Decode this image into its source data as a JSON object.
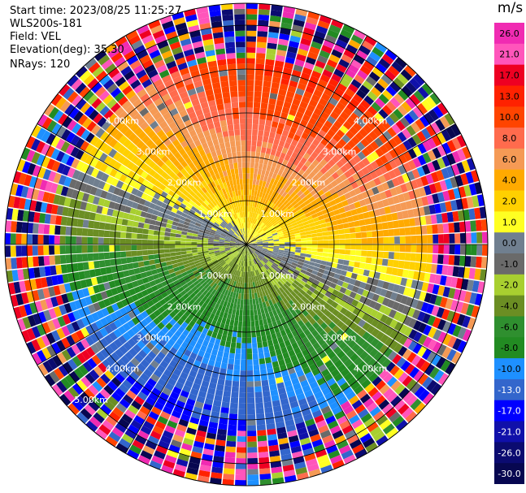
{
  "info": {
    "start_time": "Start time: 2023/08/25 11:25:27",
    "site": "WLS200s-181",
    "field": "Field: VEL",
    "elevation": "Elevation(deg): 35.30",
    "nrays": "NRays: 120"
  },
  "chart_data": {
    "type": "heatmap",
    "projection": "polar PPI",
    "field": "VEL",
    "nrays": 120,
    "elevation_deg": 35.3,
    "range_rings_km": [
      1,
      2,
      3,
      4,
      5
    ],
    "range_ring_labels": [
      "1.00km",
      "2.00km",
      "3.00km",
      "4.00km",
      "5.00km"
    ],
    "max_range_km": 5.5,
    "spoke_angles_deg": [
      0,
      30,
      60,
      90,
      120,
      150,
      180,
      210,
      240,
      270,
      300,
      330
    ],
    "wind_direction_from_deg": 20,
    "approx_speed_profile": [
      {
        "range_km": 0.5,
        "speed_ms": 2.0
      },
      {
        "range_km": 1.5,
        "speed_ms": 6.0
      },
      {
        "range_km": 2.5,
        "speed_ms": 9.0
      },
      {
        "range_km": 3.5,
        "speed_ms": 12.0
      },
      {
        "range_km": 4.2,
        "speed_ms": 14.0
      }
    ],
    "noise_start_km": 4.2,
    "colorbar": {
      "unit": "m/s",
      "ticks": [
        "26.0",
        "21.0",
        "17.0",
        "13.0",
        "10.0",
        "8.0",
        "6.0",
        "4.0",
        "2.0",
        "1.0",
        "0.0",
        "-1.0",
        "-2.0",
        "-4.0",
        "-6.0",
        "-8.0",
        "-10.0",
        "-13.0",
        "-17.0",
        "-21.0",
        "-26.0",
        "-30.0"
      ],
      "bounds": [
        30,
        26,
        21,
        17,
        13,
        10,
        8,
        6,
        4,
        2,
        1,
        0,
        -1,
        -2,
        -4,
        -6,
        -8,
        -10,
        -13,
        -17,
        -21,
        -26,
        -30
      ],
      "colors": [
        "#f02bb2",
        "#ff55bb",
        "#ee0022",
        "#ff2200",
        "#ff4400",
        "#ff6b4d",
        "#f59a55",
        "#ffaa00",
        "#ffd000",
        "#ffff22",
        "#707f8f",
        "#6a6a6a",
        "#a8cf30",
        "#6b8e23",
        "#2f8f2f",
        "#228b22",
        "#1e90ff",
        "#3366cc",
        "#0000ff",
        "#1010aa",
        "#0b0b70",
        "#070750"
      ]
    }
  }
}
